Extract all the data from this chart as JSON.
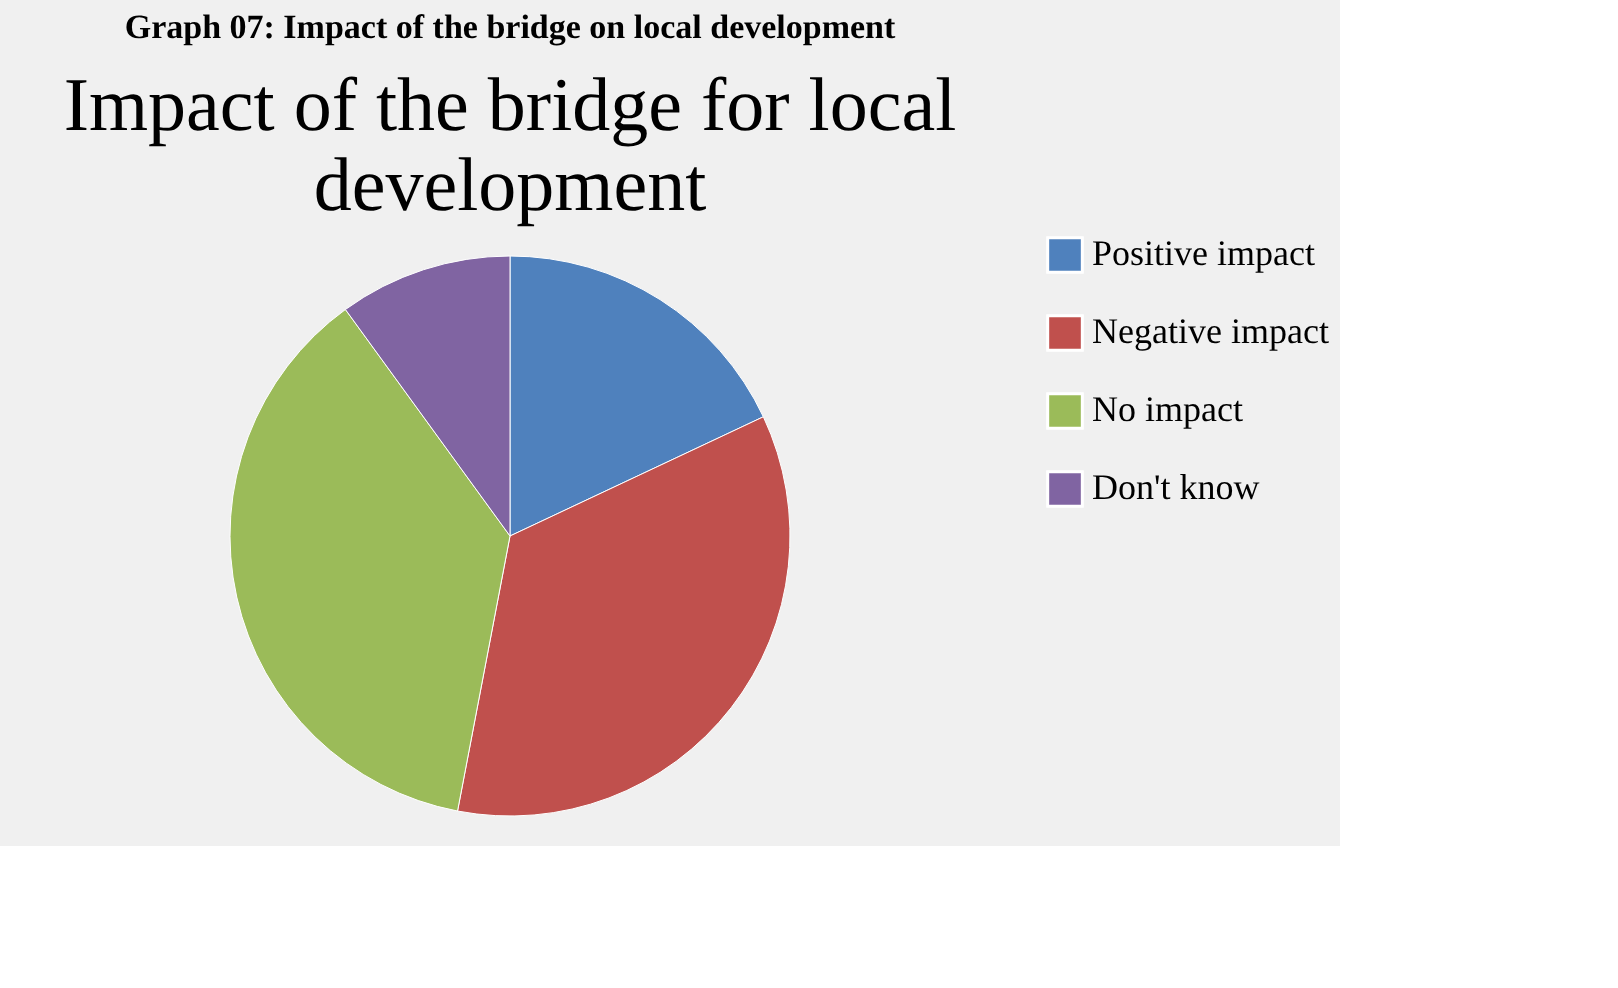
{
  "chart_data": {
    "type": "pie",
    "title": "Graph 07: Impact of the bridge on local development",
    "subtitle": "Impact of the bridge for local development",
    "categories": [
      "Positive impact",
      "Negative impact",
      "No impact",
      "Don't know"
    ],
    "values": [
      18,
      35,
      37,
      10
    ],
    "colors": [
      "#4f81bd",
      "#c0504d",
      "#9bbb59",
      "#8064a2"
    ],
    "legend": "right"
  }
}
